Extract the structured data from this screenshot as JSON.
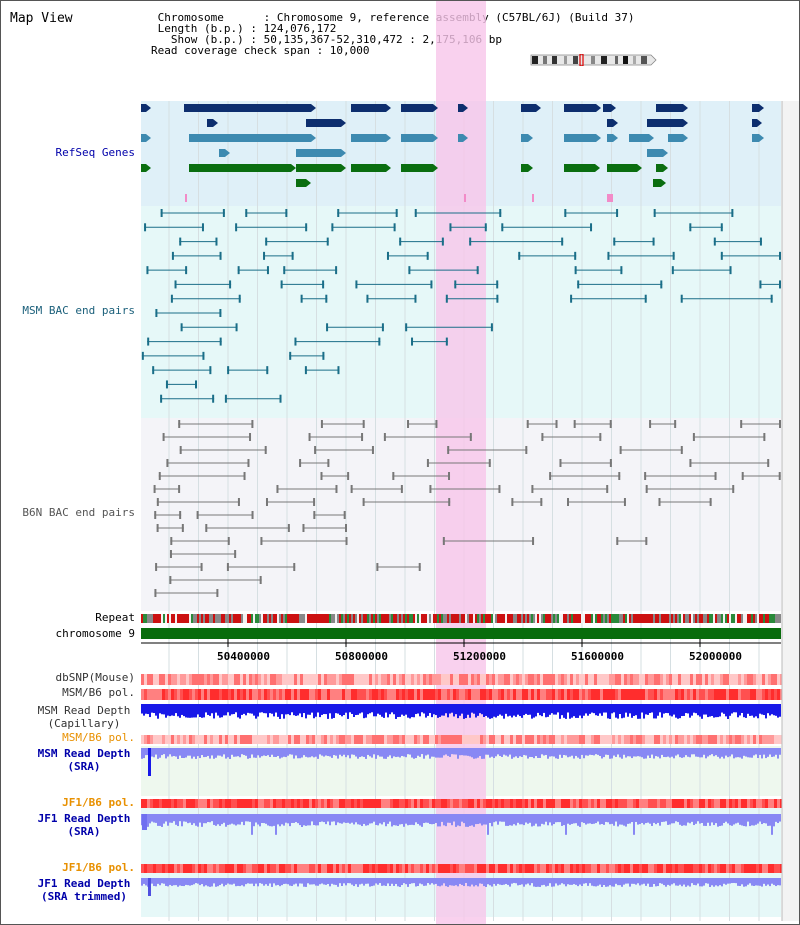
{
  "header": {
    "title": "Map View",
    "info_lines": [
      " Chromosome      : Chromosome 9, reference assembly (C57BL/6J) (Build 37)",
      " Length (b.p.) : 124,076,172",
      "   Show (b.p.) : 50,135,367-52,310,472 : 2,175,106 bp",
      "Read coverage check span : 10,000"
    ]
  },
  "tracks": {
    "refseq": "RefSeq Genes",
    "msm_bac": "MSM BAC end pairs",
    "b6n_bac": "B6N BAC end pairs",
    "repeat": "Repeat",
    "chromosome": "chromosome 9",
    "dbsnp": "dbSNP(Mouse)",
    "msm_b6_pol": "MSM/B6 pol.",
    "msm_depth_cap_1": "MSM Read Depth",
    "msm_depth_cap_2": "(Capillary)",
    "msm_b6_pol_2": "MSM/B6 pol.",
    "msm_depth_sra_1": "MSM Read Depth",
    "msm_depth_sra_2": "(SRA)",
    "jf1_b6_pol": "JF1/B6 pol.",
    "jf1_depth_sra_1": "JF1 Read Depth",
    "jf1_depth_sra_2": "(SRA)",
    "jf1_b6_pol_2": "JF1/B6 pol.",
    "jf1_depth_trim_1": "JF1 Read Depth",
    "jf1_depth_trim_2": "(SRA trimmed)"
  },
  "axis": {
    "ticks": [
      "50400000",
      "50800000",
      "51200000",
      "51600000",
      "52000000"
    ]
  },
  "colors": {
    "refseq_bg": "#dff0f8",
    "msm_bg": "#e6f8f8",
    "b6n_bg": "#f4f4f8",
    "highlight": "#f7c6ea",
    "refseq_dark": "#0d2e6e",
    "refseq_mid": "#3d8ab0",
    "refseq_green": "#0a6e10",
    "msm_line": "#1a6e88",
    "b6n_line": "#777777",
    "chromosome_bar": "#086c0c",
    "depth_blue": "#1818e8",
    "depth_light": "#8888f4",
    "label_blue": "#0000aa",
    "label_orange": "#e89000"
  }
}
